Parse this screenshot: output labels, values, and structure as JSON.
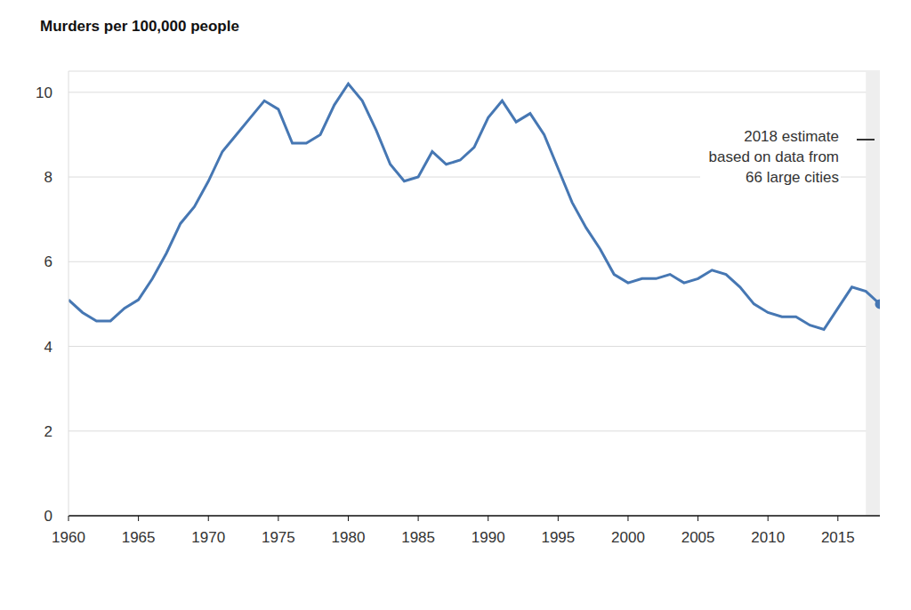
{
  "chart_data": {
    "type": "line",
    "title": "Murders per 100,000 people",
    "x": [
      1960,
      1961,
      1962,
      1963,
      1964,
      1965,
      1966,
      1967,
      1968,
      1969,
      1970,
      1971,
      1972,
      1973,
      1974,
      1975,
      1976,
      1977,
      1978,
      1979,
      1980,
      1981,
      1982,
      1983,
      1984,
      1985,
      1986,
      1987,
      1988,
      1989,
      1990,
      1991,
      1992,
      1993,
      1994,
      1995,
      1996,
      1997,
      1998,
      1999,
      2000,
      2001,
      2002,
      2003,
      2004,
      2005,
      2006,
      2007,
      2008,
      2009,
      2010,
      2011,
      2012,
      2013,
      2014,
      2015,
      2016,
      2017,
      2018
    ],
    "values": [
      5.1,
      4.8,
      4.6,
      4.6,
      4.9,
      5.1,
      5.6,
      6.2,
      6.9,
      7.3,
      7.9,
      8.6,
      9.0,
      9.4,
      9.8,
      9.6,
      8.8,
      8.8,
      9.0,
      9.7,
      10.2,
      9.8,
      9.1,
      8.3,
      7.9,
      8.0,
      8.6,
      8.3,
      8.4,
      8.7,
      9.4,
      9.8,
      9.3,
      9.5,
      9.0,
      8.2,
      7.4,
      6.8,
      6.3,
      5.7,
      5.5,
      5.6,
      5.6,
      5.7,
      5.5,
      5.6,
      5.8,
      5.7,
      5.4,
      5.0,
      4.8,
      4.7,
      4.7,
      4.5,
      4.4,
      4.9,
      5.4,
      5.3,
      5.0
    ],
    "color": "#4677b3",
    "xlim": [
      1960,
      2018
    ],
    "xticks": [
      1960,
      1965,
      1970,
      1975,
      1980,
      1985,
      1990,
      1995,
      2000,
      2005,
      2010,
      2015
    ],
    "ylim": [
      0,
      10.5
    ],
    "yticks": [
      0,
      2,
      4,
      6,
      8,
      10
    ],
    "grid": true,
    "highlight": [
      2017,
      2018
    ],
    "annotation": [
      "2018 estimate",
      "based on data from",
      "66 large cities"
    ]
  }
}
